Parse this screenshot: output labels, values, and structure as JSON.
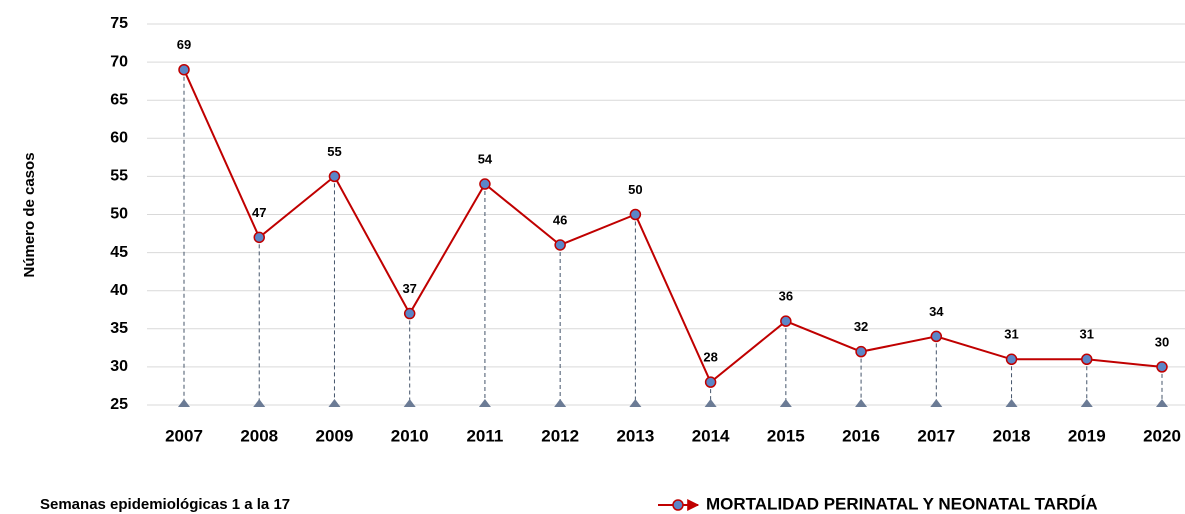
{
  "chart_data": {
    "type": "line",
    "y_label": "Número de casos",
    "footnote": "Semanas epidemiológicas 1 a la 17",
    "categories": [
      "2007",
      "2008",
      "2009",
      "2010",
      "2011",
      "2012",
      "2013",
      "2014",
      "2015",
      "2016",
      "2017",
      "2018",
      "2019",
      "2020"
    ],
    "series": [
      {
        "name": "MORTALIDAD PERINATAL Y NEONATAL TARDÍA",
        "color": "#c00000",
        "marker_color": "#5b86c7",
        "values": [
          69,
          47,
          55,
          37,
          54,
          46,
          50,
          28,
          36,
          32,
          34,
          31,
          31,
          30
        ]
      }
    ],
    "ylim": [
      25,
      75
    ],
    "yticks": [
      25,
      30,
      35,
      40,
      45,
      50,
      55,
      60,
      65,
      70,
      75
    ],
    "grid": true,
    "legend": "bottom-right"
  }
}
